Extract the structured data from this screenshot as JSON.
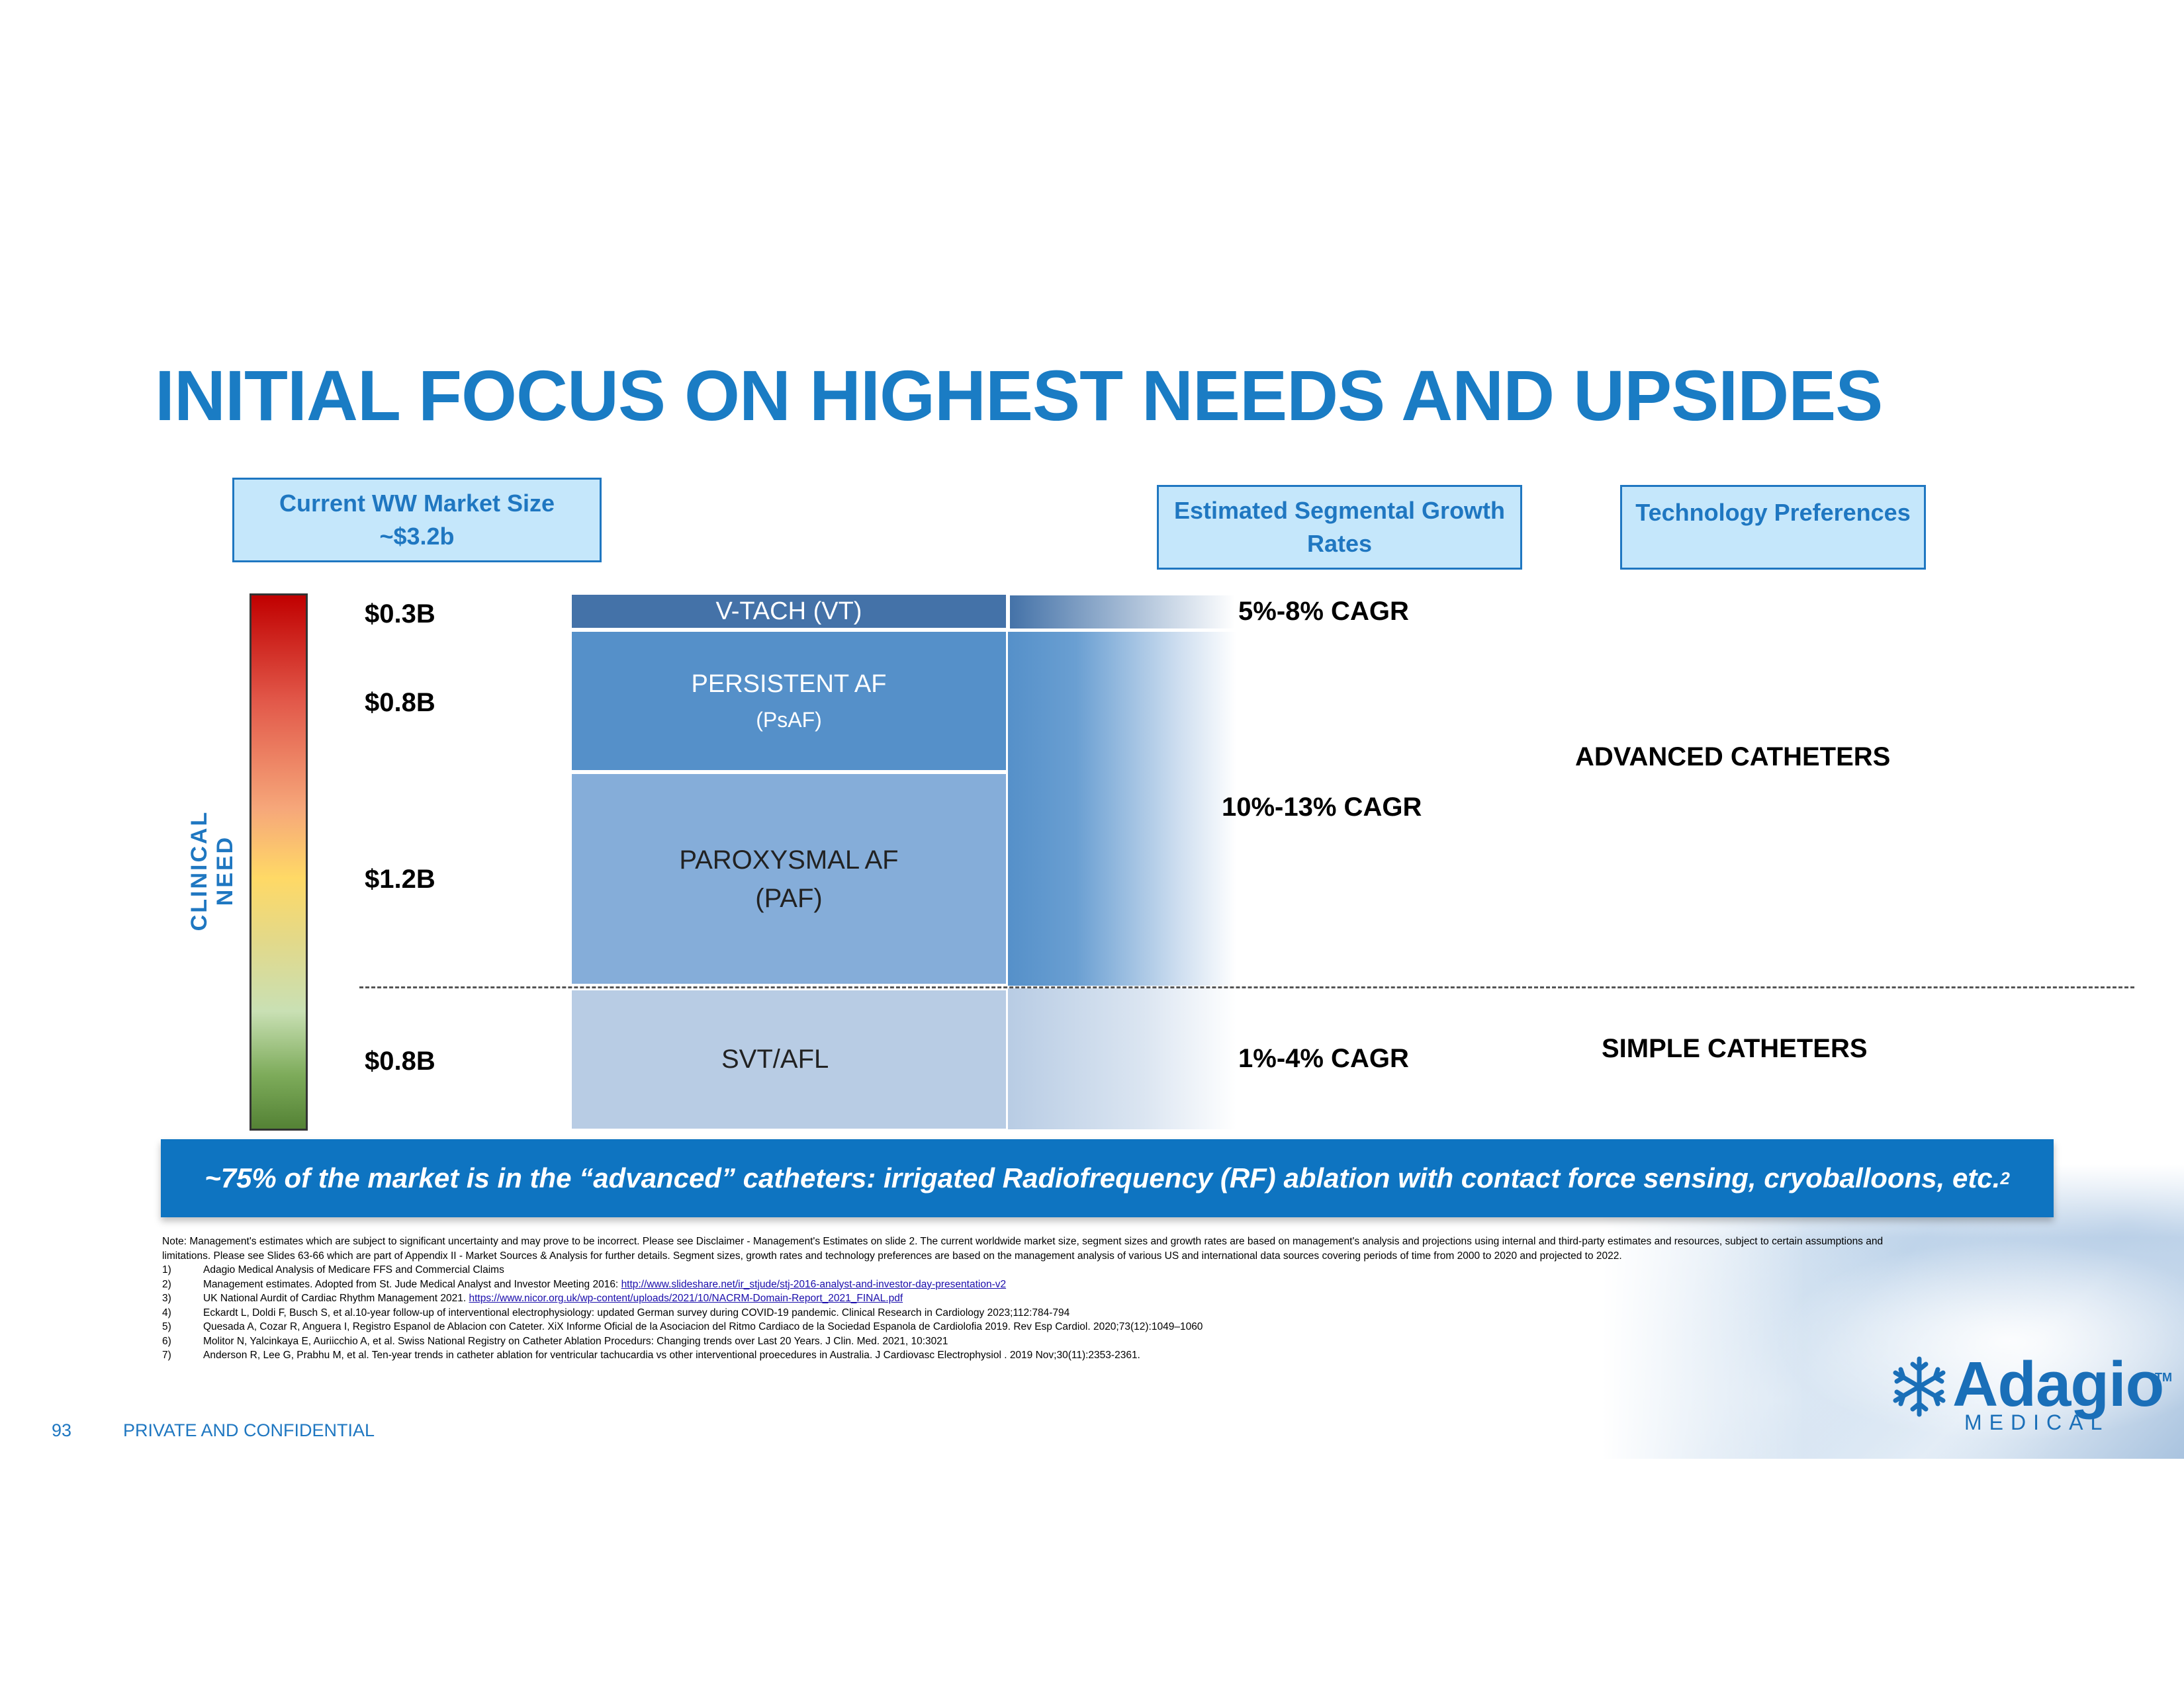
{
  "title": "INITIAL FOCUS ON HIGHEST NEEDS AND UPSIDES",
  "headers": {
    "market_size_line1": "Current WW Market Size",
    "market_size_line2": "~$3.2b",
    "growth_line1": "Estimated Segmental Growth",
    "growth_line2": "Rates",
    "tech": "Technology Preferences"
  },
  "axis_label": "CLINICAL NEED",
  "sizes": {
    "vt": "$0.3B",
    "psaf": "$0.8B",
    "paf": "$1.2B",
    "svt": "$0.8B"
  },
  "segments": {
    "vt": "V-TACH (VT)",
    "psaf_line1": "PERSISTENT AF",
    "psaf_line2": "(PsAF)",
    "paf_line1": "PAROXYSMAL AF",
    "paf_line2": "(PAF)",
    "svt": "SVT/AFL"
  },
  "cagr": {
    "vt": "5%-8% CAGR",
    "af": "10%-13% CAGR",
    "svt": "1%-4% CAGR"
  },
  "tech": {
    "advanced": "ADVANCED CATHETERS",
    "simple": "SIMPLE CATHETERS"
  },
  "banner": {
    "text": "~75% of the market is in the “advanced” catheters: irrigated Radiofrequency (RF) ablation with contact force sensing, cryoballoons, etc.",
    "superscript": "2"
  },
  "note": "Note: Management's estimates which are subject to significant uncertainty and may prove to be incorrect. Please see Disclaimer - Management's Estimates on slide 2. The current worldwide market size, segment sizes and growth rates are based on management's analysis and projections using internal and third-party estimates and resources, subject to certain assumptions and limitations. Please see Slides 63-66 which are part of Appendix II - Market Sources & Analysis for further details. Segment sizes, growth rates and technology preferences are based on the management analysis of various US and international data sources covering periods of time from 2000 to 2020 and projected to 2022.",
  "references": [
    {
      "num": "1)",
      "text": "Adagio Medical Analysis of Medicare FFS and Commercial Claims",
      "link": ""
    },
    {
      "num": "2)",
      "text": "Management estimates. Adopted from St. Jude Medical Analyst and Investor Meeting 2016: ",
      "link": "http://www.slideshare.net/ir_stjude/stj-2016-analyst-and-investor-day-presentation-v2"
    },
    {
      "num": "3)",
      "text": "UK National Aurdit of Cardiac Rhythm Management 2021. ",
      "link": "https://www.nicor.org.uk/wp-content/uploads/2021/10/NACRM-Domain-Report_2021_FINAL.pdf"
    },
    {
      "num": "4)",
      "text": "Eckardt L, Doldi F, Busch S, et al.10-year follow-up of interventional electrophysiology: updated German survey during COVID-19 pandemic. Clinical Research in Cardiology 2023;112:784-794",
      "link": ""
    },
    {
      "num": "5)",
      "text": "Quesada A, Cozar R, Anguera I, Registro Espanol de Ablacion con Cateter. XiX Informe Oficial de la Asociacion del Ritmo Cardiaco de la Sociedad Espanola de Cardiolofia 2019. Rev Esp Cardiol. 2020;73(12):1049–1060",
      "link": ""
    },
    {
      "num": "6)",
      "text": "Molitor N, Yalcinkaya E, Auriicchio A, et al. Swiss National Registry on Catheter Ablation Procedurs: Changing trends over Last 20 Years. J Clin. Med. 2021, 10:3021",
      "link": ""
    },
    {
      "num": "7)",
      "text": "Anderson R, Lee G, Prabhu M, et al.  Ten-year trends in catheter ablation for ventricular tachucardia vs other interventional proecedures in Australia. J Cardiovasc Electrophysiol . 2019 Nov;30(11):2353-2361.",
      "link": ""
    }
  ],
  "footer": {
    "page_number": "93",
    "confidential": "PRIVATE AND CONFIDENTIAL"
  },
  "logo": {
    "word": "Adagio",
    "tm": "TM",
    "sub": "MEDICAL"
  },
  "colors": {
    "brand_blue": "#1a7cc4",
    "banner_blue": "#0e74c1",
    "vt": "#4472a8",
    "psaf": "#5590c9",
    "paf": "#85add9",
    "svt": "#b8cce4"
  }
}
